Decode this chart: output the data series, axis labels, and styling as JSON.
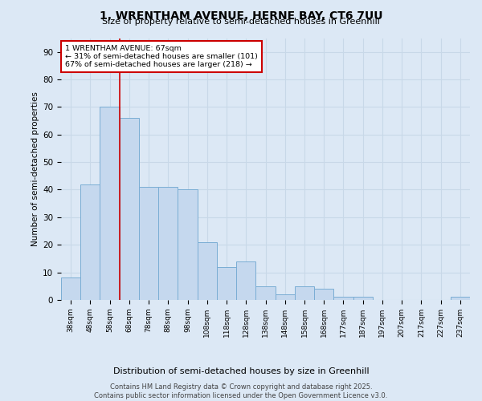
{
  "title_line1": "1, WRENTHAM AVENUE, HERNE BAY, CT6 7UU",
  "title_line2": "Size of property relative to semi-detached houses in Greenhill",
  "xlabel": "Distribution of semi-detached houses by size in Greenhill",
  "ylabel": "Number of semi-detached properties",
  "categories": [
    "38sqm",
    "48sqm",
    "58sqm",
    "68sqm",
    "78sqm",
    "88sqm",
    "98sqm",
    "108sqm",
    "118sqm",
    "128sqm",
    "138sqm",
    "148sqm",
    "158sqm",
    "168sqm",
    "177sqm",
    "187sqm",
    "197sqm",
    "207sqm",
    "217sqm",
    "227sqm",
    "237sqm"
  ],
  "values": [
    8,
    42,
    70,
    66,
    41,
    41,
    40,
    21,
    12,
    14,
    5,
    2,
    5,
    4,
    1,
    1,
    0,
    0,
    0,
    0,
    1
  ],
  "bar_color": "#c5d8ee",
  "bar_edge_color": "#7aadd4",
  "annotation_box_color": "#ffffff",
  "annotation_box_edge_color": "#cc0000",
  "vline_color": "#cc0000",
  "ylim": [
    0,
    95
  ],
  "yticks": [
    0,
    10,
    20,
    30,
    40,
    50,
    60,
    70,
    80,
    90
  ],
  "grid_color": "#c8d8e8",
  "bg_color": "#dce8f5",
  "footer": "Contains HM Land Registry data © Crown copyright and database right 2025.\nContains public sector information licensed under the Open Government Licence v3.0.",
  "pct_smaller": 31,
  "count_smaller": 101,
  "pct_larger": 67,
  "count_larger": 218
}
